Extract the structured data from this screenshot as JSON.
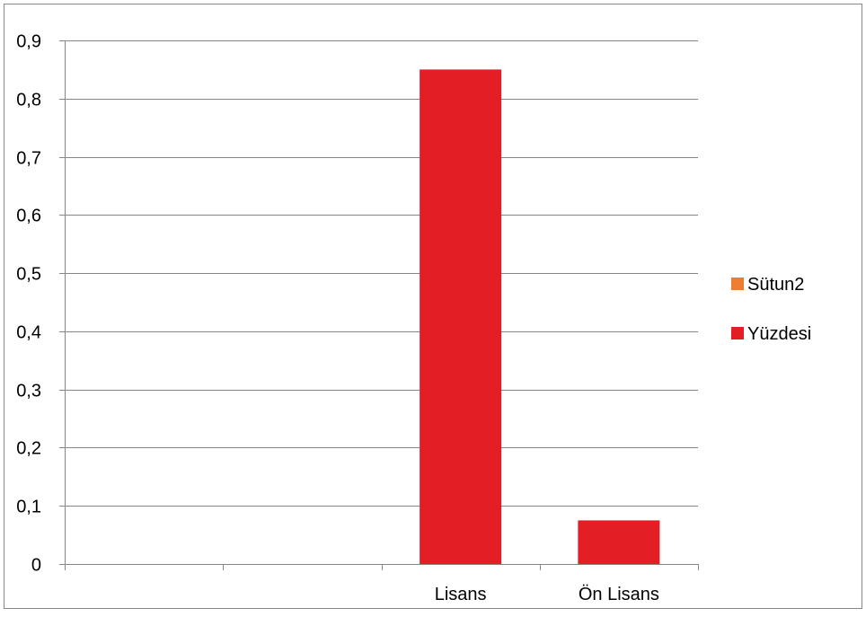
{
  "chart_data": {
    "type": "bar",
    "categories": [
      "",
      "",
      "Lisans",
      "Ön Lisans"
    ],
    "series": [
      {
        "name": "Sütun2",
        "values": [
          null,
          null,
          null,
          null
        ],
        "color": "#ED7D31"
      },
      {
        "name": "Yüzdesi",
        "values": [
          null,
          null,
          0.85,
          0.075
        ],
        "color": "#E31E24"
      }
    ],
    "y_ticks": [
      "0",
      "0,1",
      "0,2",
      "0,3",
      "0,4",
      "0,5",
      "0,6",
      "0,7",
      "0,8",
      "0,9"
    ],
    "ylim": [
      0,
      0.9
    ],
    "grid": true,
    "legend_position": "right"
  }
}
